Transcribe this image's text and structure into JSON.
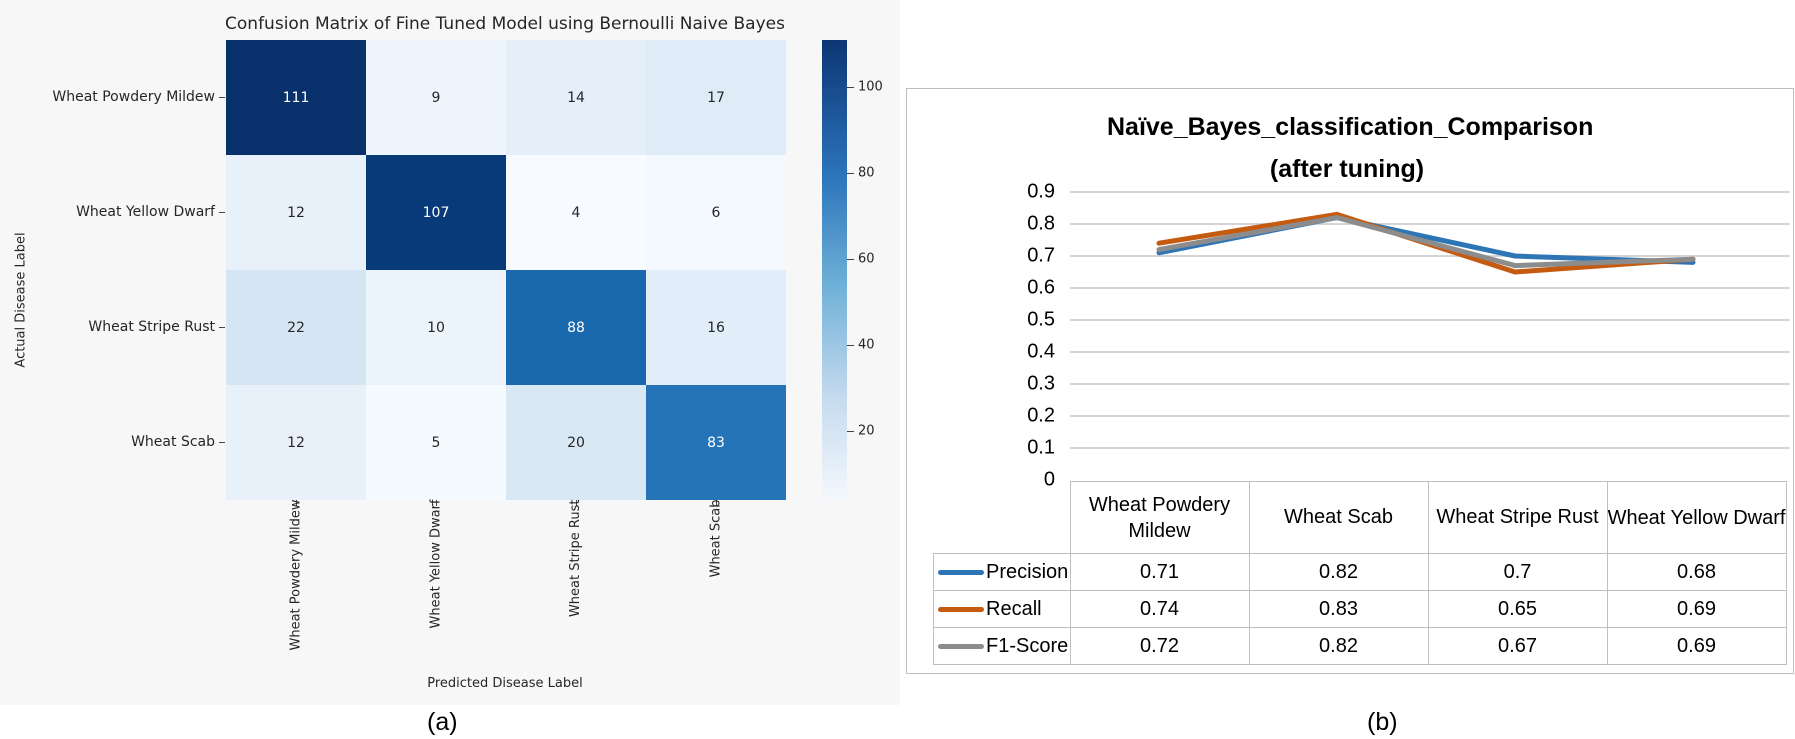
{
  "captions": {
    "a": "(a)",
    "b": "(b)"
  },
  "chart_data": [
    {
      "type": "heatmap",
      "title": "Confusion Matrix of Fine Tuned Model using Bernoulli Naive Bayes",
      "xlabel": "Predicted Disease Label",
      "ylabel": "Actual Disease Label",
      "rows": [
        "Wheat Powdery Mildew",
        "Wheat Yellow Dwarf",
        "Wheat Stripe Rust",
        "Wheat Scab"
      ],
      "columns": [
        "Wheat Powdery Mildew",
        "Wheat Yellow Dwarf",
        "Wheat Stripe Rust",
        "Wheat Scab"
      ],
      "values": [
        [
          111,
          9,
          14,
          17
        ],
        [
          12,
          107,
          4,
          6
        ],
        [
          22,
          10,
          88,
          16
        ],
        [
          12,
          5,
          20,
          83
        ]
      ],
      "colorbar": {
        "ticks": [
          20,
          40,
          60,
          80,
          100
        ],
        "range": [
          4,
          111
        ],
        "colormap": "Blues"
      }
    },
    {
      "type": "line",
      "title": "Naïve_Bayes_classification_Comparison",
      "subtitle": "(after tuning)",
      "categories": [
        "Wheat Powdery Mildew",
        "Wheat Scab",
        "Wheat Stripe Rust",
        "Wheat Yellow Dwarf"
      ],
      "yticks": [
        "0.9",
        "0.8",
        "0.7",
        "0.6",
        "0.5",
        "0.4",
        "0.3",
        "0.2",
        "0.1",
        "0"
      ],
      "ylim": [
        0,
        0.9
      ],
      "series": [
        {
          "name": "Precision",
          "color": "#2e75b6",
          "values": [
            0.71,
            0.82,
            0.7,
            0.68
          ],
          "labels": [
            "0.71",
            "0.82",
            "0.7",
            "0.68"
          ]
        },
        {
          "name": "Recall",
          "color": "#c55a11",
          "values": [
            0.74,
            0.83,
            0.65,
            0.69
          ],
          "labels": [
            "0.74",
            "0.83",
            "0.65",
            "0.69"
          ]
        },
        {
          "name": "F1-Score",
          "color": "#8c8c8c",
          "values": [
            0.72,
            0.82,
            0.67,
            0.69
          ],
          "labels": [
            "0.72",
            "0.82",
            "0.67",
            "0.69"
          ]
        }
      ]
    }
  ]
}
